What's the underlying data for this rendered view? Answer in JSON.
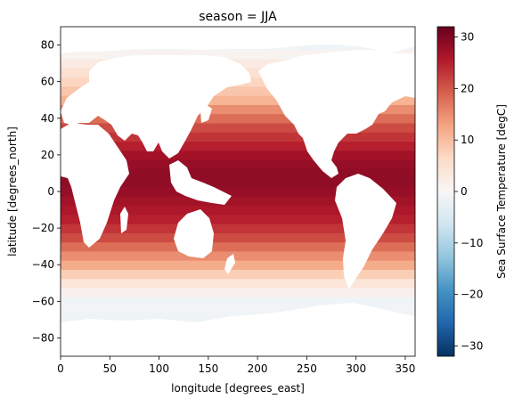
{
  "chart_data": {
    "type": "heatmap",
    "title": "season = JJA",
    "xlabel": "longitude [degrees_east]",
    "ylabel": "latitude [degrees_north]",
    "xlim": [
      0,
      360
    ],
    "ylim": [
      -90,
      90
    ],
    "xticks": [
      0,
      50,
      100,
      150,
      200,
      250,
      300,
      350
    ],
    "yticks": [
      -80,
      -60,
      -40,
      -20,
      0,
      20,
      40,
      60,
      80
    ],
    "colorbar": {
      "label": "Sea Surface Temperature [degC]",
      "range": [
        -32,
        32
      ],
      "ticks": [
        -30,
        -20,
        -10,
        0,
        10,
        20,
        30
      ],
      "colormap": [
        "#053061",
        "#2166ac",
        "#4393c3",
        "#92c5de",
        "#d1e5f0",
        "#f7f7f7",
        "#fddbc7",
        "#f4a582",
        "#d6604d",
        "#b2182b",
        "#67001f"
      ]
    },
    "land_color": "#ffffff",
    "sst_profile": {
      "latitude": [
        -80,
        -75,
        -70,
        -65,
        -60,
        -55,
        -50,
        -45,
        -40,
        -35,
        -30,
        -25,
        -20,
        -15,
        -10,
        -5,
        0,
        5,
        10,
        15,
        20,
        25,
        30,
        35,
        40,
        45,
        50,
        55,
        60,
        65,
        70,
        75,
        80,
        85
      ],
      "temperature": [
        -1.5,
        -1.5,
        -1.5,
        -1.2,
        -1.0,
        1.5,
        4,
        8,
        12,
        15,
        18,
        21,
        23,
        25,
        26,
        27,
        28,
        28.5,
        28.5,
        28,
        27,
        25,
        23,
        21,
        18,
        15,
        11,
        9,
        7,
        5,
        3,
        1,
        -1,
        -1.5
      ]
    },
    "grid": false
  }
}
